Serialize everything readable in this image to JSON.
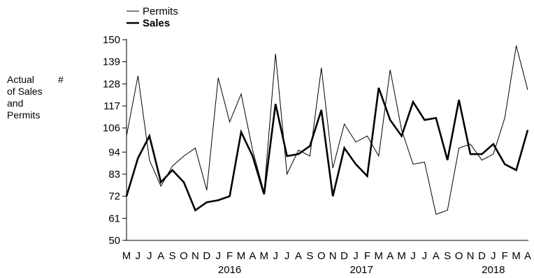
{
  "chart_data": {
    "type": "line",
    "legend": {
      "placement": "top-left",
      "entries": [
        {
          "label": "Permits",
          "style": "thin"
        },
        {
          "label": "Sales",
          "style": "bold"
        }
      ]
    },
    "ylabel_lines": [
      "Actual",
      "#",
      "of Sales",
      "and",
      "Permits"
    ],
    "yticks": [
      150,
      139,
      128,
      117,
      106,
      94,
      83,
      72,
      61,
      50
    ],
    "ylim": [
      50,
      150
    ],
    "x_month_labels": [
      "M",
      "J",
      "J",
      "A",
      "S",
      "O",
      "N",
      "D",
      "J",
      "F",
      "M",
      "A",
      "M",
      "J",
      "J",
      "A",
      "S",
      "O",
      "N",
      "D",
      "J",
      "F",
      "M",
      "A",
      "M",
      "J",
      "J",
      "A",
      "S",
      "O",
      "N",
      "D",
      "J",
      "F",
      "M",
      "A"
    ],
    "year_labels": [
      {
        "label": "2016",
        "month_index": 9
      },
      {
        "label": "2017",
        "month_index": 20.5
      },
      {
        "label": "2018",
        "month_index": 32
      }
    ],
    "grid": false,
    "series": [
      {
        "name": "Permits",
        "width": 1,
        "values": [
          102,
          132,
          90,
          77,
          87,
          92,
          96,
          75,
          131,
          109,
          123,
          95,
          74,
          143,
          83,
          95,
          92,
          136,
          86,
          108,
          99,
          102,
          92,
          135,
          105,
          88,
          89,
          63,
          65,
          96,
          98,
          90,
          93,
          111,
          147,
          125
        ]
      },
      {
        "name": "Sales",
        "width": 2.6,
        "values": [
          72,
          91,
          102,
          79,
          85,
          79,
          65,
          69,
          70,
          72,
          104,
          92,
          73,
          118,
          92,
          93,
          97,
          115,
          72,
          96,
          88,
          82,
          126,
          110,
          102,
          119,
          110,
          111,
          90,
          120,
          93,
          93,
          98,
          88,
          85,
          105
        ]
      }
    ]
  }
}
